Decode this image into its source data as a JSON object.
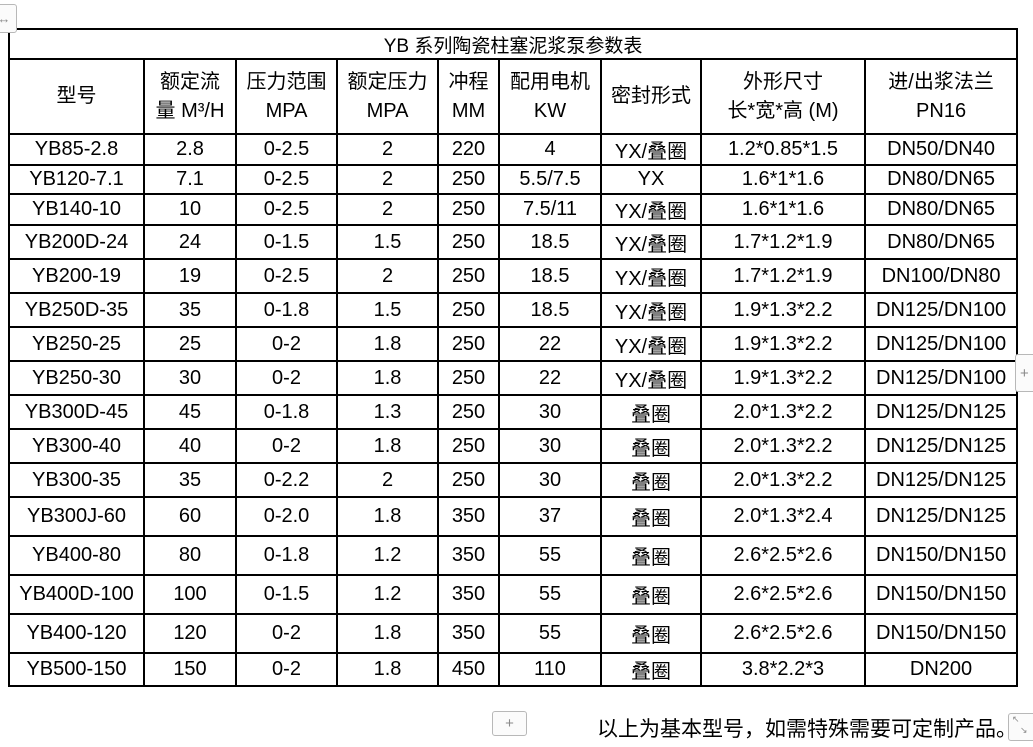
{
  "document": {
    "table": {
      "title": "YB 系列陶瓷柱塞泥浆泵参数表",
      "columns": [
        {
          "line1": "型号",
          "line2": ""
        },
        {
          "line1": "额定流",
          "line2": "量 M³/H"
        },
        {
          "line1": "压力范围",
          "line2": "MPA"
        },
        {
          "line1": "额定压力",
          "line2": "MPA"
        },
        {
          "line1": "冲程",
          "line2": "MM"
        },
        {
          "line1": "配用电机",
          "line2": "KW"
        },
        {
          "line1": "密封形式",
          "line2": ""
        },
        {
          "line1": "外形尺寸",
          "line2": "长*宽*高 (M)"
        },
        {
          "line1": "进/出浆法兰",
          "line2": "PN16"
        }
      ],
      "rows": [
        [
          "YB85-2.8",
          "2.8",
          "0-2.5",
          "2",
          "220",
          "4",
          "YX/叠圈",
          "1.2*0.85*1.5",
          "DN50/DN40"
        ],
        [
          "YB120-7.1",
          "7.1",
          "0-2.5",
          "2",
          "250",
          "5.5/7.5",
          "YX",
          "1.6*1*1.6",
          "DN80/DN65"
        ],
        [
          "YB140-10",
          "10",
          "0-2.5",
          "2",
          "250",
          "7.5/11",
          "YX/叠圈",
          "1.6*1*1.6",
          "DN80/DN65"
        ],
        [
          "YB200D-24",
          "24",
          "0-1.5",
          "1.5",
          "250",
          "18.5",
          "YX/叠圈",
          "1.7*1.2*1.9",
          "DN80/DN65"
        ],
        [
          "YB200-19",
          "19",
          "0-2.5",
          "2",
          "250",
          "18.5",
          "YX/叠圈",
          "1.7*1.2*1.9",
          "DN100/DN80"
        ],
        [
          "YB250D-35",
          "35",
          "0-1.8",
          "1.5",
          "250",
          "18.5",
          "YX/叠圈",
          "1.9*1.3*2.2",
          "DN125/DN100"
        ],
        [
          "YB250-25",
          "25",
          "0-2",
          "1.8",
          "250",
          "22",
          "YX/叠圈",
          "1.9*1.3*2.2",
          "DN125/DN100"
        ],
        [
          "YB250-30",
          "30",
          "0-2",
          "1.8",
          "250",
          "22",
          "YX/叠圈",
          "1.9*1.3*2.2",
          "DN125/DN100"
        ],
        [
          "YB300D-45",
          "45",
          "0-1.8",
          "1.3",
          "250",
          "30",
          "叠圈",
          "2.0*1.3*2.2",
          "DN125/DN125"
        ],
        [
          "YB300-40",
          "40",
          "0-2",
          "1.8",
          "250",
          "30",
          "叠圈",
          "2.0*1.3*2.2",
          "DN125/DN125"
        ],
        [
          "YB300-35",
          "35",
          "0-2.2",
          "2",
          "250",
          "30",
          "叠圈",
          "2.0*1.3*2.2",
          "DN125/DN125"
        ],
        [
          "YB300J-60",
          "60",
          "0-2.0",
          "1.8",
          "350",
          "37",
          "叠圈",
          "2.0*1.3*2.4",
          "DN125/DN125"
        ],
        [
          "YB400-80",
          "80",
          "0-1.8",
          "1.2",
          "350",
          "55",
          "叠圈",
          "2.6*2.5*2.6",
          "DN150/DN150"
        ],
        [
          "YB400D-100",
          "100",
          "0-1.5",
          "1.2",
          "350",
          "55",
          "叠圈",
          "2.6*2.5*2.6",
          "DN150/DN150"
        ],
        [
          "YB400-120",
          "120",
          "0-2",
          "1.8",
          "350",
          "55",
          "叠圈",
          "2.6*2.5*2.6",
          "DN150/DN150"
        ],
        [
          "YB500-150",
          "150",
          "0-2",
          "1.8",
          "450",
          "110",
          "叠圈",
          "3.8*2.2*3",
          "DN200"
        ]
      ]
    },
    "footer_note": "以上为基本型号，如需特殊需要可定制产品。"
  },
  "controls": {
    "table_move_handle_icon": "↔",
    "insert_column_button_label": "+",
    "insert_row_button_label": "+",
    "resize_handle_arrows": {
      "nw": "↖",
      "se": "↘"
    }
  },
  "colors": {
    "table_border": "#000000",
    "control_border": "#b8b8b8",
    "control_glyph": "#8a8a8a",
    "background": "#ffffff"
  }
}
